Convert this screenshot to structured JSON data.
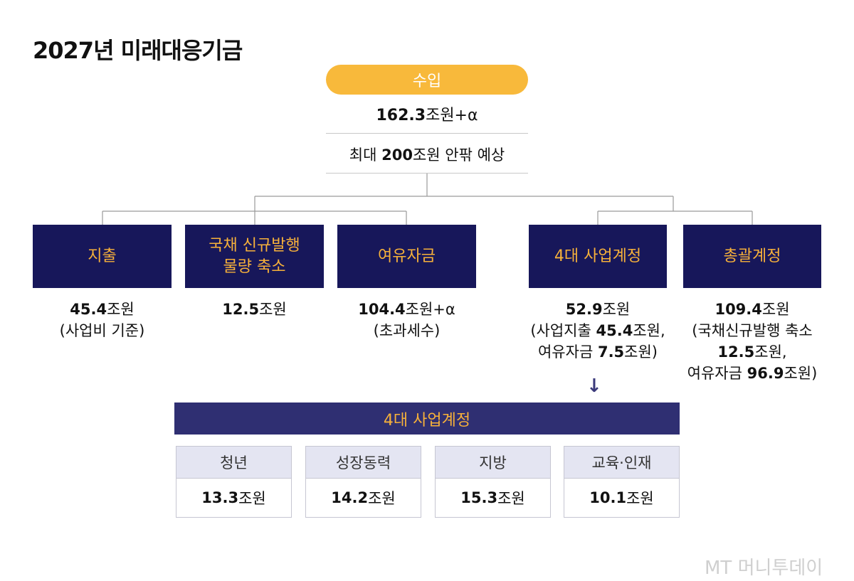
{
  "title": "2027년 미래대응기금",
  "income": {
    "label": "수입",
    "value_num": "162.3",
    "value_suffix": "조원+α",
    "note_prefix": "최대 ",
    "note_num": "200",
    "note_suffix": "조원 안팎 예상"
  },
  "boxes": [
    {
      "label": "지출",
      "detail_num": "45.4",
      "detail_unit": "조원",
      "detail_rest": "(사업비 기준)"
    },
    {
      "label": "국채 신규발행\n물량 축소",
      "detail_num": "12.5",
      "detail_unit": "조원",
      "detail_rest": ""
    },
    {
      "label": "여유자금",
      "detail_num": "104.4",
      "detail_unit": "조원+α",
      "detail_rest": "(초과세수)"
    },
    {
      "label": "4대 사업계정",
      "detail_num": "52.9",
      "detail_unit": "조원",
      "detail_l2a": "(사업지출 ",
      "detail_l2b": "45.4",
      "detail_l2c": "조원,",
      "detail_l3a": "여유자금 ",
      "detail_l3b": "7.5",
      "detail_l3c": "조원)"
    },
    {
      "label": "총괄계정",
      "detail_num": "109.4",
      "detail_unit": "조원",
      "detail_l2a": "(국채신규발행 축소",
      "detail_l3b": "12.5",
      "detail_l3c": "조원,",
      "detail_l4a": "여유자금 ",
      "detail_l4b": "96.9",
      "detail_l4c": "조원)"
    }
  ],
  "arrow_icon": "arrow-down-icon",
  "sub_account": {
    "header": "4대 사업계정",
    "items": [
      {
        "label": "청년",
        "value_num": "13.3",
        "value_unit": "조원"
      },
      {
        "label": "성장동력",
        "value_num": "14.2",
        "value_unit": "조원"
      },
      {
        "label": "지방",
        "value_num": "15.3",
        "value_unit": "조원"
      },
      {
        "label": "교육·인재",
        "value_num": "10.1",
        "value_unit": "조원"
      }
    ]
  },
  "logo": "MT 머니투데이",
  "colors": {
    "navy": "#17175a",
    "orange": "#f7b13a",
    "pill": "#f8b93b",
    "header": "#2f2f72"
  }
}
